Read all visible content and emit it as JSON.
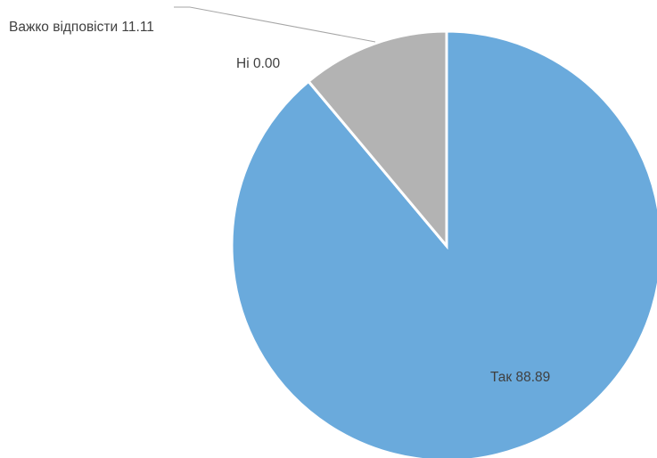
{
  "chart_data": {
    "type": "pie",
    "title": "",
    "categories": [
      "Так",
      "Ні",
      "Важко відповісти"
    ],
    "values": [
      88.89,
      0.0,
      11.11
    ],
    "colors": [
      "#6aaadc",
      "#ed7d31",
      "#b3b3b3"
    ],
    "labels": [
      "Так 88.89",
      "Ні 0.00",
      "Важко відповісти 11.11"
    ],
    "start_angle_deg": 0,
    "direction": "clockwise",
    "legend": "none"
  }
}
